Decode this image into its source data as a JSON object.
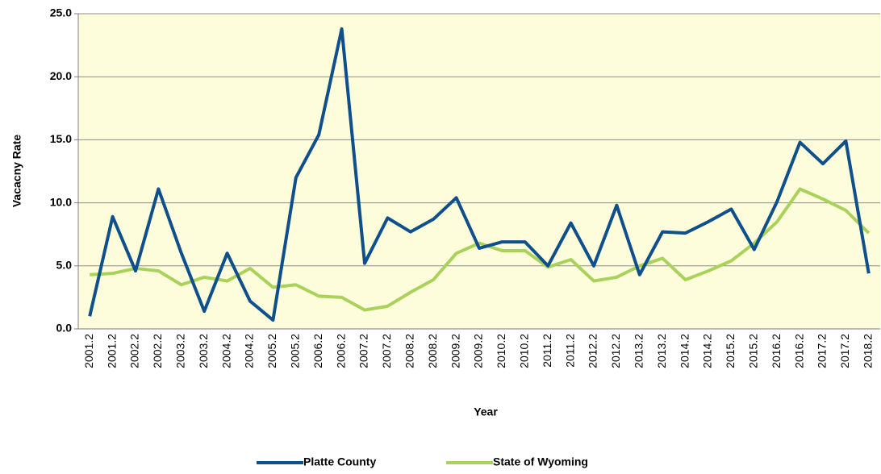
{
  "chart_data": {
    "type": "line",
    "ylabel": "Vacacny Rate",
    "xlabel": "Year",
    "categories": [
      "2001.2",
      "2001.2",
      "2002.2",
      "2002.2",
      "2003.2",
      "2003.2",
      "2004.2",
      "2004.2",
      "2005.2",
      "2005.2",
      "2006.2",
      "2006.2",
      "2007.2",
      "2007.2",
      "2008.2",
      "2008.2",
      "2009.2",
      "2009.2",
      "2010.2",
      "2010.2",
      "2011.2",
      "2011.2",
      "2012.2",
      "2012.2",
      "2013.2",
      "2013.2",
      "2014.2",
      "2014.2",
      "2015.2",
      "2015.2",
      "2016.2",
      "2016.2",
      "2017.2",
      "2017.2",
      "2018.2"
    ],
    "series": [
      {
        "name": "Platte County",
        "color": "#0e4f8c",
        "values": [
          1.0,
          8.9,
          4.6,
          11.1,
          6.0,
          1.4,
          6.0,
          2.2,
          0.7,
          12.0,
          15.4,
          23.8,
          5.2,
          8.8,
          7.7,
          8.7,
          10.4,
          6.4,
          6.9,
          6.9,
          5.0,
          8.4,
          5.0,
          9.8,
          4.3,
          7.7,
          7.6,
          8.5,
          9.5,
          6.3,
          10.1,
          14.8,
          13.1,
          14.9,
          4.4
        ]
      },
      {
        "name": "State of Wyoming",
        "color": "#a9d25a",
        "values": [
          4.3,
          4.4,
          4.8,
          4.6,
          3.5,
          4.1,
          3.8,
          4.8,
          3.3,
          3.5,
          2.6,
          2.5,
          1.5,
          1.8,
          2.9,
          3.9,
          6.0,
          6.8,
          6.2,
          6.2,
          4.9,
          5.5,
          3.8,
          4.1,
          5.0,
          5.6,
          3.9,
          4.6,
          5.4,
          6.8,
          8.5,
          11.1,
          10.3,
          9.4,
          7.6
        ]
      }
    ],
    "ylim": [
      0,
      25
    ],
    "yticks": [
      {
        "value": 0,
        "label": "0.0"
      },
      {
        "value": 5,
        "label": "5.0"
      },
      {
        "value": 10,
        "label": "10.0"
      },
      {
        "value": 15,
        "label": "15.0"
      },
      {
        "value": 20,
        "label": "20.0"
      },
      {
        "value": 25,
        "label": "25.0"
      }
    ],
    "grid": true,
    "legend": "bottom",
    "background": "#fdfddc"
  }
}
